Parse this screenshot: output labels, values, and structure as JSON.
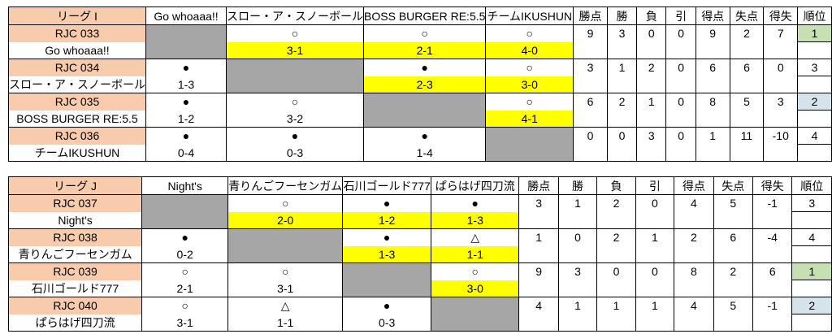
{
  "colors": {
    "team": "#f8cbad",
    "score": "#ffff00",
    "diagonal": "#a6a6a6"
  },
  "leagues": [
    {
      "header": [
        "リーグ I",
        "Go whoaaa!!",
        "スロー・ア・スノーボール",
        "BOSS BURGER RE:5.5",
        "チームIKUSHUN",
        "勝点",
        "勝",
        "負",
        "引",
        "得点",
        "失点",
        "得失",
        "順位"
      ],
      "rows": [
        {
          "code": "RJC 033",
          "name": "Go whoaaa!!",
          "results": [
            null,
            {
              "mark": "○",
              "score": "3-1"
            },
            {
              "mark": "○",
              "score": "2-1"
            },
            {
              "mark": "○",
              "score": "4-0"
            }
          ],
          "stats": [
            9,
            3,
            0,
            0,
            9,
            2,
            7
          ],
          "rank": 1,
          "rank_color": "#c6e0b4"
        },
        {
          "code": "RJC 034",
          "name": "スロー・ア・スノーボール",
          "results": [
            {
              "mark": "●",
              "score": "1-3"
            },
            null,
            {
              "mark": "●",
              "score": "2-3"
            },
            {
              "mark": "○",
              "score": "3-0"
            }
          ],
          "stats": [
            3,
            1,
            2,
            0,
            6,
            6,
            0
          ],
          "rank": 3
        },
        {
          "code": "RJC 035",
          "name": "BOSS BURGER RE:5.5",
          "results": [
            {
              "mark": "●",
              "score": "1-2"
            },
            {
              "mark": "○",
              "score": "3-2"
            },
            null,
            {
              "mark": "○",
              "score": "4-1"
            }
          ],
          "stats": [
            6,
            2,
            1,
            0,
            8,
            5,
            3
          ],
          "rank": 2,
          "rank_color": "#d5e3ea"
        },
        {
          "code": "RJC 036",
          "name": "チームIKUSHUN",
          "results": [
            {
              "mark": "●",
              "score": "0-4"
            },
            {
              "mark": "●",
              "score": "0-3"
            },
            {
              "mark": "●",
              "score": "1-4"
            },
            null
          ],
          "stats": [
            0,
            0,
            3,
            0,
            1,
            11,
            -10
          ],
          "rank": 4
        }
      ]
    },
    {
      "header": [
        "リーグ J",
        "Night's",
        "青りんごフーセンガム",
        "石川ゴールド777",
        "ぱらはげ四刀流",
        "勝点",
        "勝",
        "負",
        "引",
        "得点",
        "失点",
        "得失",
        "順位"
      ],
      "rows": [
        {
          "code": "RJC 037",
          "name": "Night's",
          "results": [
            null,
            {
              "mark": "○",
              "score": "2-0"
            },
            {
              "mark": "●",
              "score": "1-2"
            },
            {
              "mark": "●",
              "score": "1-3"
            }
          ],
          "stats": [
            3,
            1,
            2,
            0,
            4,
            5,
            -1
          ],
          "rank": 3
        },
        {
          "code": "RJC 038",
          "name": "青りんごフーセンガム",
          "results": [
            {
              "mark": "●",
              "score": "0-2"
            },
            null,
            {
              "mark": "●",
              "score": "1-3"
            },
            {
              "mark": "△",
              "score": "1-1"
            }
          ],
          "stats": [
            1,
            0,
            2,
            1,
            2,
            6,
            -4
          ],
          "rank": 4
        },
        {
          "code": "RJC 039",
          "name": "石川ゴールド777",
          "results": [
            {
              "mark": "○",
              "score": "2-1"
            },
            {
              "mark": "○",
              "score": "3-1"
            },
            null,
            {
              "mark": "○",
              "score": "3-0"
            }
          ],
          "stats": [
            9,
            3,
            0,
            0,
            8,
            2,
            6
          ],
          "rank": 1,
          "rank_color": "#c6e0b4"
        },
        {
          "code": "RJC 040",
          "name": "ぱらはげ四刀流",
          "results": [
            {
              "mark": "○",
              "score": "3-1"
            },
            {
              "mark": "△",
              "score": "1-1"
            },
            {
              "mark": "●",
              "score": "0-3"
            },
            null
          ],
          "stats": [
            4,
            1,
            1,
            1,
            4,
            5,
            -1
          ],
          "rank": 2,
          "rank_color": "#d5e3ea"
        }
      ]
    }
  ]
}
